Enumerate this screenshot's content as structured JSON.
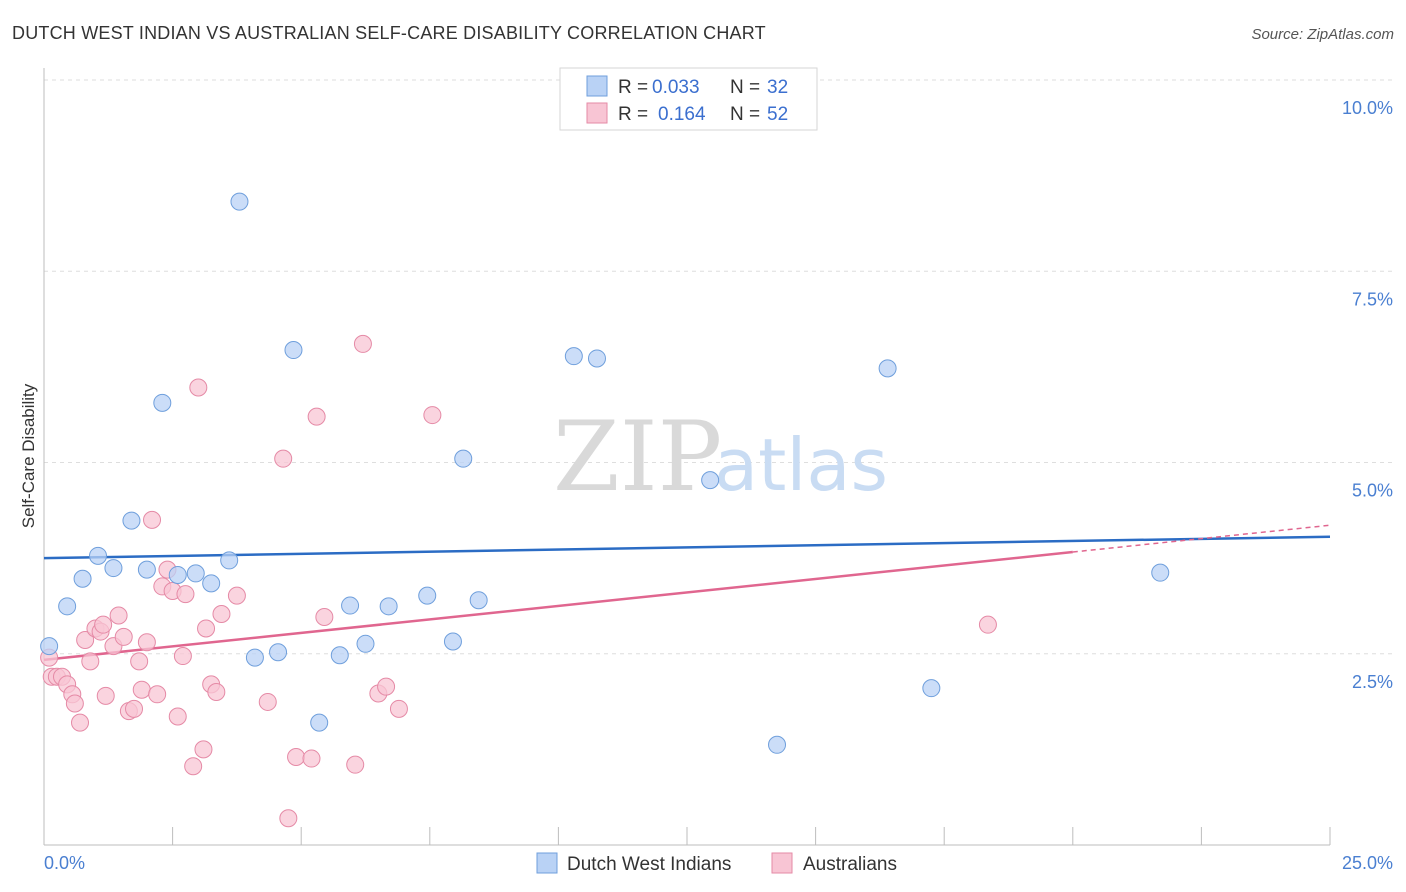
{
  "title": "DUTCH WEST INDIAN VS AUSTRALIAN SELF-CARE DISABILITY CORRELATION CHART",
  "source": "Source: ZipAtlas.com",
  "watermark": {
    "zip": "ZIP",
    "atlas": "atlas"
  },
  "legend_top": [
    {
      "r_label": "R = ",
      "r_value": "0.033",
      "n_label": "N = ",
      "n_value": "32",
      "color": "#b9d2f5",
      "stroke": "#6f9fdc"
    },
    {
      "r_label": "R = ",
      "r_value": "0.164",
      "n_label": "N = ",
      "n_value": "52",
      "color": "#f8c5d4",
      "stroke": "#e58aa6"
    }
  ],
  "legend_bottom": [
    {
      "label": "Dutch West Indians",
      "color": "#b9d2f5",
      "stroke": "#6f9fdc"
    },
    {
      "label": "Australians",
      "color": "#f8c5d4",
      "stroke": "#e58aa6"
    }
  ],
  "chart_data": {
    "type": "scatter",
    "ylabel": "Self-Care Disability",
    "xlim": [
      0,
      25
    ],
    "ylim": [
      0,
      10
    ],
    "x_tick_labels": [
      "0.0%",
      "25.0%"
    ],
    "y_ticks": [
      2.5,
      5.0,
      7.5,
      10.0
    ],
    "y_tick_labels": [
      "2.5%",
      "5.0%",
      "7.5%",
      "10.0%"
    ],
    "grid": true,
    "legend_position": "top-center",
    "series": [
      {
        "name": "Dutch West Indians",
        "color": "#6f9fdc",
        "fill": "#b9d2f5",
        "line_color": "#2b6cc4",
        "trend": {
          "x": [
            0,
            25
          ],
          "y": [
            3.75,
            4.03
          ]
        },
        "points": [
          [
            0.1,
            2.6
          ],
          [
            0.45,
            3.12
          ],
          [
            0.75,
            3.48
          ],
          [
            1.05,
            3.78
          ],
          [
            1.35,
            3.62
          ],
          [
            1.7,
            4.24
          ],
          [
            2.0,
            3.6
          ],
          [
            2.3,
            5.78
          ],
          [
            2.6,
            3.53
          ],
          [
            2.95,
            3.55
          ],
          [
            3.25,
            3.42
          ],
          [
            3.6,
            3.72
          ],
          [
            3.8,
            8.41
          ],
          [
            4.1,
            2.45
          ],
          [
            4.55,
            2.52
          ],
          [
            4.85,
            6.47
          ],
          [
            5.35,
            1.6
          ],
          [
            5.75,
            2.48
          ],
          [
            5.95,
            3.13
          ],
          [
            6.25,
            2.63
          ],
          [
            6.7,
            3.12
          ],
          [
            7.45,
            3.26
          ],
          [
            7.95,
            2.66
          ],
          [
            8.15,
            5.05
          ],
          [
            8.45,
            3.2
          ],
          [
            10.3,
            6.39
          ],
          [
            10.75,
            6.36
          ],
          [
            12.95,
            4.77
          ],
          [
            14.25,
            1.31
          ],
          [
            16.4,
            6.23
          ],
          [
            17.25,
            2.05
          ],
          [
            21.7,
            3.56
          ]
        ]
      },
      {
        "name": "Australians",
        "color": "#e58aa6",
        "fill": "#f8c5d4",
        "line_color": "#e0668f",
        "trend": {
          "x": [
            0,
            20
          ],
          "y": [
            2.42,
            3.83
          ]
        },
        "trend_dashed": {
          "x": [
            20,
            25
          ],
          "y": [
            3.83,
            4.18
          ]
        },
        "points": [
          [
            0.1,
            2.45
          ],
          [
            0.15,
            2.2
          ],
          [
            0.25,
            2.2
          ],
          [
            0.35,
            2.2
          ],
          [
            0.45,
            2.1
          ],
          [
            0.55,
            1.97
          ],
          [
            0.6,
            1.85
          ],
          [
            0.7,
            1.6
          ],
          [
            0.8,
            2.68
          ],
          [
            0.9,
            2.4
          ],
          [
            1.0,
            2.83
          ],
          [
            1.1,
            2.79
          ],
          [
            1.15,
            2.88
          ],
          [
            1.2,
            1.95
          ],
          [
            1.35,
            2.6
          ],
          [
            1.45,
            3.0
          ],
          [
            1.55,
            2.72
          ],
          [
            1.65,
            1.75
          ],
          [
            1.75,
            1.78
          ],
          [
            1.85,
            2.4
          ],
          [
            1.9,
            2.03
          ],
          [
            2.0,
            2.65
          ],
          [
            2.1,
            4.25
          ],
          [
            2.2,
            1.97
          ],
          [
            2.3,
            3.38
          ],
          [
            2.4,
            3.6
          ],
          [
            2.5,
            3.32
          ],
          [
            2.6,
            1.68
          ],
          [
            2.7,
            2.47
          ],
          [
            2.75,
            3.28
          ],
          [
            2.9,
            1.03
          ],
          [
            3.0,
            5.98
          ],
          [
            3.1,
            1.25
          ],
          [
            3.15,
            2.83
          ],
          [
            3.25,
            2.1
          ],
          [
            3.35,
            2.0
          ],
          [
            3.45,
            3.02
          ],
          [
            3.75,
            3.26
          ],
          [
            4.35,
            1.87
          ],
          [
            4.65,
            5.05
          ],
          [
            4.75,
            0.35
          ],
          [
            4.9,
            1.15
          ],
          [
            5.2,
            1.13
          ],
          [
            5.3,
            5.6
          ],
          [
            5.45,
            2.98
          ],
          [
            6.05,
            1.05
          ],
          [
            6.2,
            6.55
          ],
          [
            6.5,
            1.98
          ],
          [
            6.65,
            2.07
          ],
          [
            6.9,
            1.78
          ],
          [
            7.55,
            5.62
          ],
          [
            18.35,
            2.88
          ]
        ]
      }
    ]
  }
}
